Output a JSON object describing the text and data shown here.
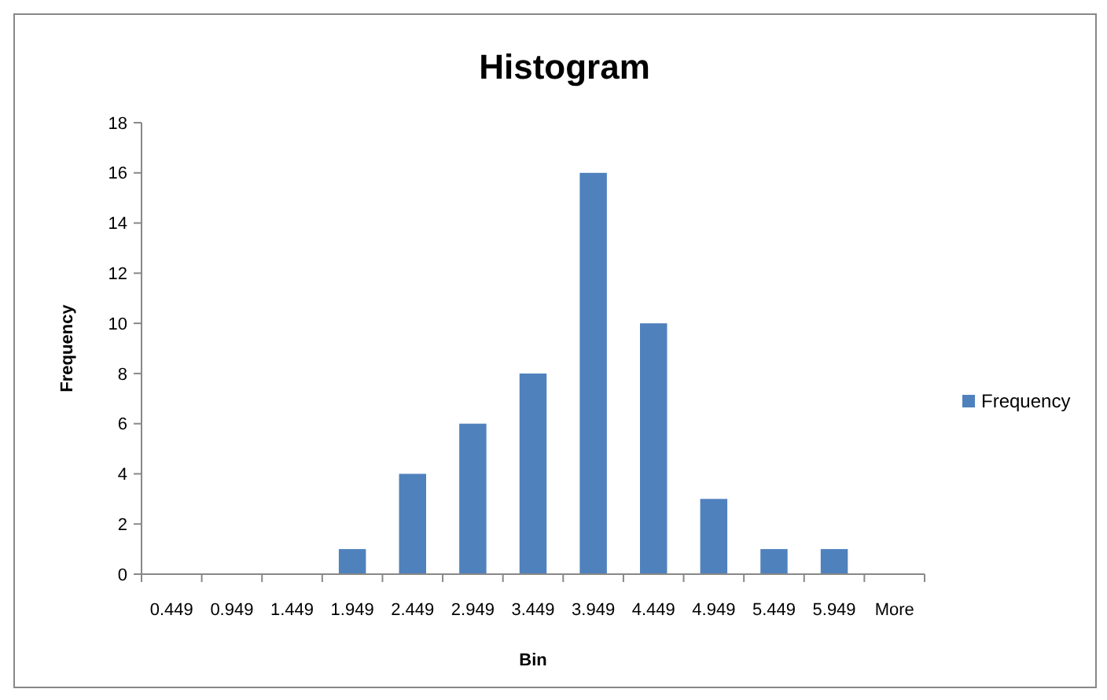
{
  "chart_data": {
    "type": "bar",
    "title": "Histogram",
    "xlabel": "Bin",
    "ylabel": "Frequency",
    "categories": [
      "0.449",
      "0.949",
      "1.449",
      "1.949",
      "2.449",
      "2.949",
      "3.449",
      "3.949",
      "4.449",
      "4.949",
      "5.449",
      "5.949",
      "More"
    ],
    "series": [
      {
        "name": "Frequency",
        "color": "#4f81bd",
        "values": [
          0,
          0,
          0,
          1,
          4,
          6,
          8,
          16,
          10,
          3,
          1,
          1,
          0
        ]
      }
    ],
    "ylim": [
      0,
      18
    ],
    "yticks": [
      0,
      2,
      4,
      6,
      8,
      10,
      12,
      14,
      16,
      18
    ],
    "legend": "right"
  }
}
